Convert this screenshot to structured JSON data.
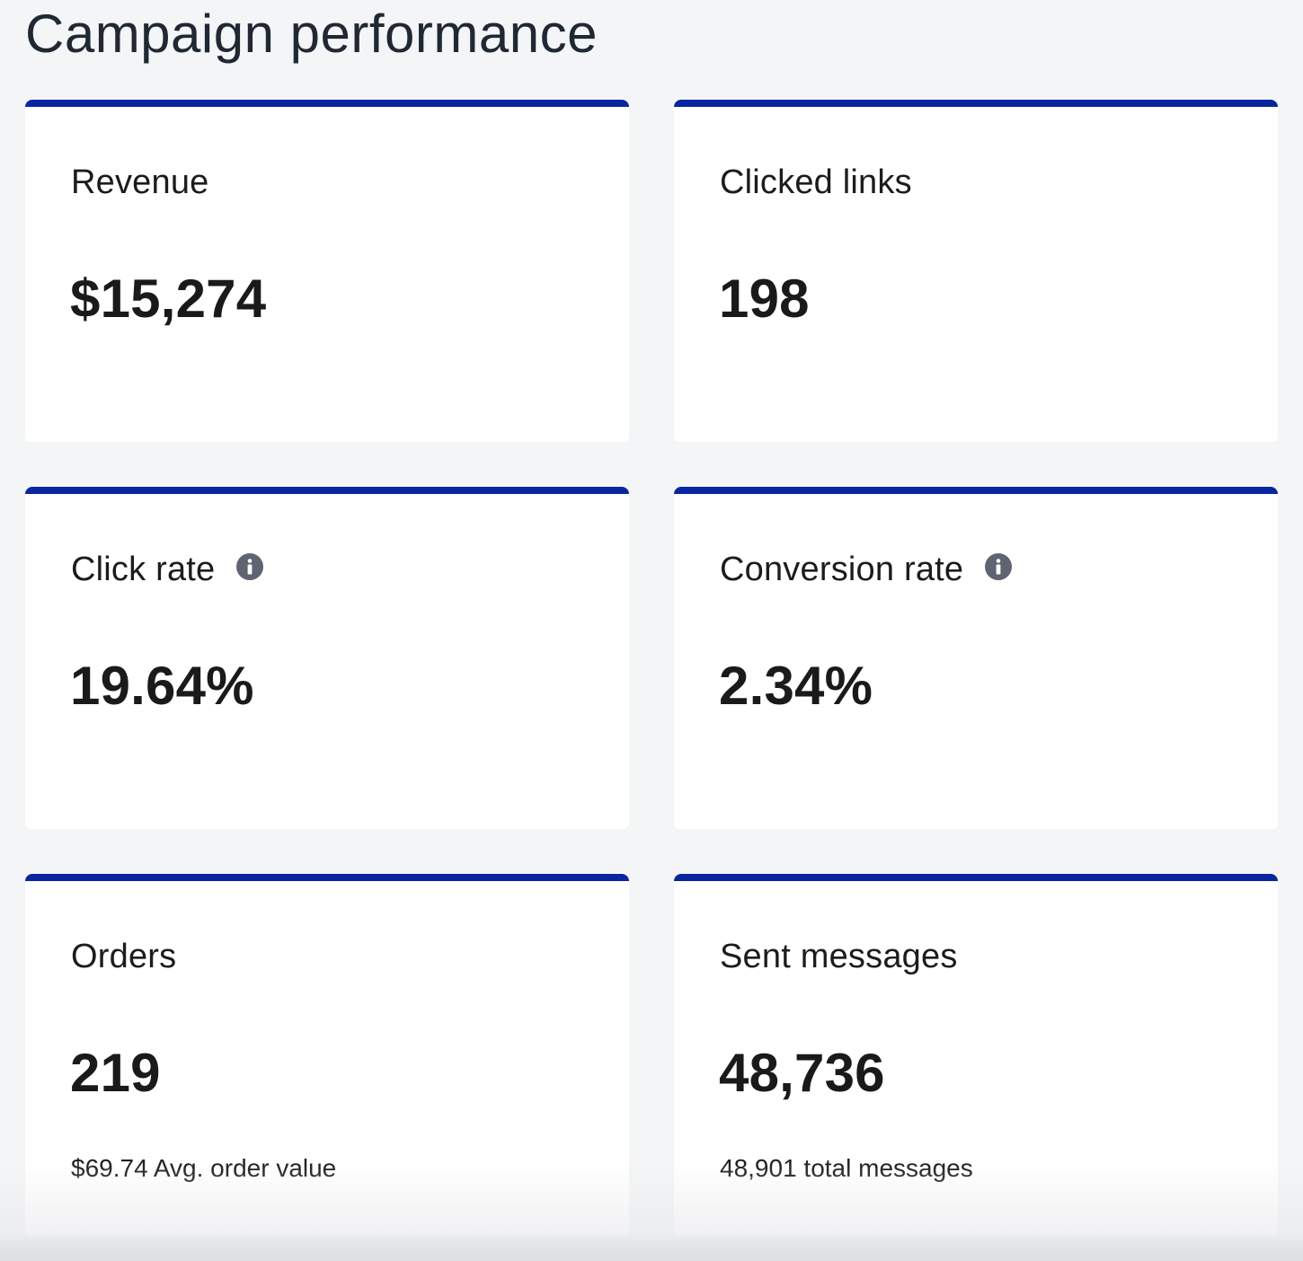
{
  "page": {
    "title": "Campaign performance"
  },
  "colors": {
    "accent_bar": "#0a25a0",
    "card_background": "#ffffff",
    "page_background": "#f4f5f7",
    "info_icon": "#5f6470"
  },
  "cards": [
    {
      "label": "Revenue",
      "value": "$15,274",
      "has_info_icon": false,
      "subtext": ""
    },
    {
      "label": "Clicked links",
      "value": "198",
      "has_info_icon": false,
      "subtext": ""
    },
    {
      "label": "Click rate",
      "value": "19.64%",
      "has_info_icon": true,
      "info_icon": "info-icon",
      "subtext": ""
    },
    {
      "label": "Conversion rate",
      "value": "2.34%",
      "has_info_icon": true,
      "info_icon": "info-icon",
      "subtext": ""
    },
    {
      "label": "Orders",
      "value": "219",
      "has_info_icon": false,
      "subtext": "$69.74 Avg. order value"
    },
    {
      "label": "Sent messages",
      "value": "48,736",
      "has_info_icon": false,
      "subtext": "48,901 total messages"
    }
  ]
}
